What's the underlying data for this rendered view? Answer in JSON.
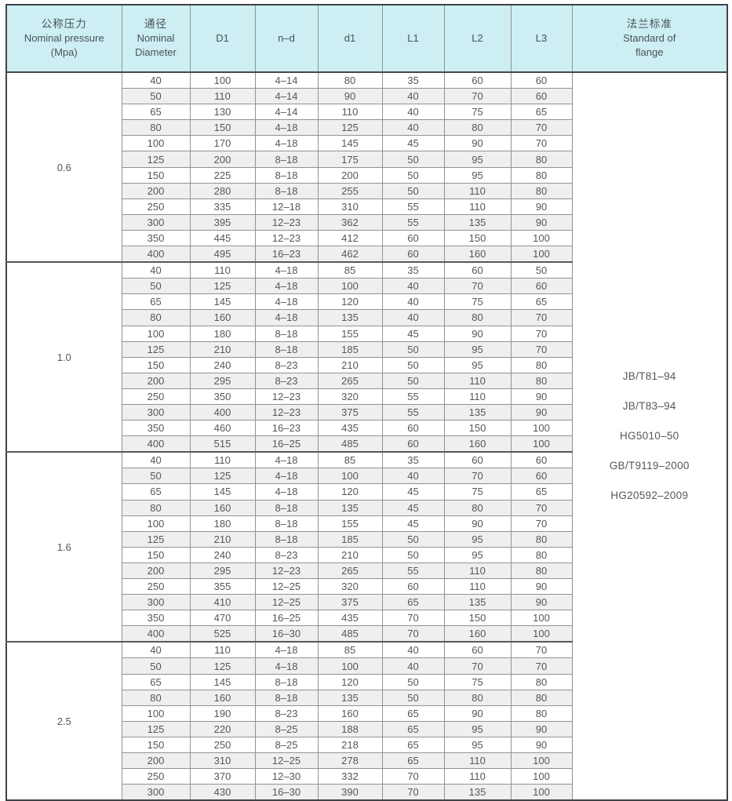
{
  "table": {
    "columns": [
      {
        "id": "pressure",
        "lines": [
          "公称压力",
          "Nominal pressure",
          "(Mpa)"
        ]
      },
      {
        "id": "diameter",
        "lines": [
          "通径",
          "Nominal",
          "Diameter"
        ]
      },
      {
        "id": "D1",
        "lines": [
          "D1"
        ]
      },
      {
        "id": "n-d",
        "lines": [
          "n–d"
        ]
      },
      {
        "id": "d1",
        "lines": [
          "d1"
        ]
      },
      {
        "id": "L1",
        "lines": [
          "L1"
        ]
      },
      {
        "id": "L2",
        "lines": [
          "L2"
        ]
      },
      {
        "id": "L3",
        "lines": [
          "L3"
        ]
      },
      {
        "id": "standard",
        "lines": [
          "法兰标准",
          "Standard of",
          "flange"
        ]
      }
    ],
    "groups": [
      {
        "pressure": "0.6",
        "rows": [
          [
            "40",
            "100",
            "4–14",
            "80",
            "35",
            "60",
            "60"
          ],
          [
            "50",
            "110",
            "4–14",
            "90",
            "40",
            "70",
            "60"
          ],
          [
            "65",
            "130",
            "4–14",
            "110",
            "40",
            "75",
            "65"
          ],
          [
            "80",
            "150",
            "4–18",
            "125",
            "40",
            "80",
            "70"
          ],
          [
            "100",
            "170",
            "4–18",
            "145",
            "45",
            "90",
            "70"
          ],
          [
            "125",
            "200",
            "8–18",
            "175",
            "50",
            "95",
            "80"
          ],
          [
            "150",
            "225",
            "8–18",
            "200",
            "50",
            "95",
            "80"
          ],
          [
            "200",
            "280",
            "8–18",
            "255",
            "50",
            "110",
            "80"
          ],
          [
            "250",
            "335",
            "12–18",
            "310",
            "55",
            "110",
            "90"
          ],
          [
            "300",
            "395",
            "12–23",
            "362",
            "55",
            "135",
            "90"
          ],
          [
            "350",
            "445",
            "12–23",
            "412",
            "60",
            "150",
            "100"
          ],
          [
            "400",
            "495",
            "16–23",
            "462",
            "60",
            "160",
            "100"
          ]
        ]
      },
      {
        "pressure": "1.0",
        "rows": [
          [
            "40",
            "110",
            "4–18",
            "85",
            "35",
            "60",
            "50"
          ],
          [
            "50",
            "125",
            "4–18",
            "100",
            "40",
            "70",
            "60"
          ],
          [
            "65",
            "145",
            "4–18",
            "120",
            "40",
            "75",
            "65"
          ],
          [
            "80",
            "160",
            "4–18",
            "135",
            "40",
            "80",
            "70"
          ],
          [
            "100",
            "180",
            "8–18",
            "155",
            "45",
            "90",
            "70"
          ],
          [
            "125",
            "210",
            "8–18",
            "185",
            "50",
            "95",
            "70"
          ],
          [
            "150",
            "240",
            "8–23",
            "210",
            "50",
            "95",
            "80"
          ],
          [
            "200",
            "295",
            "8–23",
            "265",
            "50",
            "110",
            "80"
          ],
          [
            "250",
            "350",
            "12–23",
            "320",
            "55",
            "110",
            "90"
          ],
          [
            "300",
            "400",
            "12–23",
            "375",
            "55",
            "135",
            "90"
          ],
          [
            "350",
            "460",
            "16–23",
            "435",
            "60",
            "150",
            "100"
          ],
          [
            "400",
            "515",
            "16–25",
            "485",
            "60",
            "160",
            "100"
          ]
        ]
      },
      {
        "pressure": "1.6",
        "rows": [
          [
            "40",
            "110",
            "4–18",
            "85",
            "35",
            "60",
            "60"
          ],
          [
            "50",
            "125",
            "4–18",
            "100",
            "40",
            "70",
            "60"
          ],
          [
            "65",
            "145",
            "4–18",
            "120",
            "45",
            "75",
            "65"
          ],
          [
            "80",
            "160",
            "8–18",
            "135",
            "45",
            "80",
            "70"
          ],
          [
            "100",
            "180",
            "8–18",
            "155",
            "45",
            "90",
            "70"
          ],
          [
            "125",
            "210",
            "8–18",
            "185",
            "50",
            "95",
            "80"
          ],
          [
            "150",
            "240",
            "8–23",
            "210",
            "50",
            "95",
            "80"
          ],
          [
            "200",
            "295",
            "12–23",
            "265",
            "55",
            "110",
            "80"
          ],
          [
            "250",
            "355",
            "12–25",
            "320",
            "60",
            "110",
            "90"
          ],
          [
            "300",
            "410",
            "12–25",
            "375",
            "65",
            "135",
            "90"
          ],
          [
            "350",
            "470",
            "16–25",
            "435",
            "70",
            "150",
            "100"
          ],
          [
            "400",
            "525",
            "16–30",
            "485",
            "70",
            "160",
            "100"
          ]
        ]
      },
      {
        "pressure": "2.5",
        "rows": [
          [
            "40",
            "110",
            "4–18",
            "85",
            "40",
            "60",
            "70"
          ],
          [
            "50",
            "125",
            "4–18",
            "100",
            "40",
            "70",
            "70"
          ],
          [
            "65",
            "145",
            "8–18",
            "120",
            "50",
            "75",
            "80"
          ],
          [
            "80",
            "160",
            "8–18",
            "135",
            "50",
            "80",
            "80"
          ],
          [
            "100",
            "190",
            "8–23",
            "160",
            "65",
            "90",
            "80"
          ],
          [
            "125",
            "220",
            "8–25",
            "188",
            "65",
            "95",
            "90"
          ],
          [
            "150",
            "250",
            "8–25",
            "218",
            "65",
            "95",
            "90"
          ],
          [
            "200",
            "310",
            "12–25",
            "278",
            "65",
            "110",
            "100"
          ],
          [
            "250",
            "370",
            "12–30",
            "332",
            "70",
            "110",
            "100"
          ],
          [
            "300",
            "430",
            "16–30",
            "390",
            "70",
            "135",
            "100"
          ]
        ]
      }
    ],
    "standards": [
      "JB/T81–94",
      "JB/T83–94",
      "HG5010–50",
      "GB/T9119–2000",
      "HG20592–2009"
    ],
    "colors": {
      "header_bg": "#cdeef3",
      "alt_row_bg": "#efefef",
      "inner_border": "#8f9396",
      "outer_border": "#3f4347",
      "text": "#53575d"
    }
  }
}
